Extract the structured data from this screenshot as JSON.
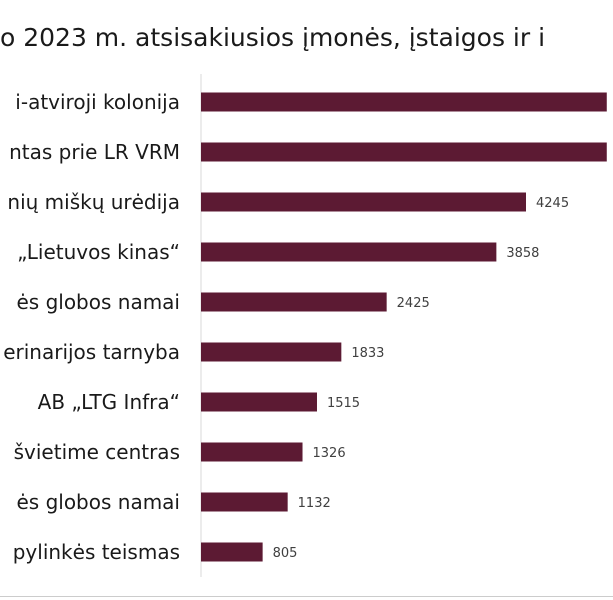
{
  "chart_data": {
    "type": "bar",
    "orientation": "horizontal",
    "title": "o 2023 m. atsisakiusios įmonės, įstaigos ir i",
    "categories": [
      "i-atviroji kolonija",
      "ntas prie LR VRM",
      "nių miškų urėdija",
      "„Lietuvos kinas“",
      "ės globos namai",
      "erinarijos tarnyba",
      "AB „LTG Infra“",
      "švietime centras",
      "ės globos namai",
      "pylinkės teismas"
    ],
    "values": [
      5300,
      5300,
      4245,
      3858,
      2425,
      1833,
      1515,
      1326,
      1132,
      805
    ],
    "value_labels": [
      "",
      "",
      "4245",
      "3858",
      "2425",
      "1833",
      "1515",
      "1326",
      "1132",
      "805"
    ],
    "xlim": [
      0,
      5400
    ],
    "bar_color": "#5c1a33",
    "grid": false,
    "legend": "none"
  }
}
